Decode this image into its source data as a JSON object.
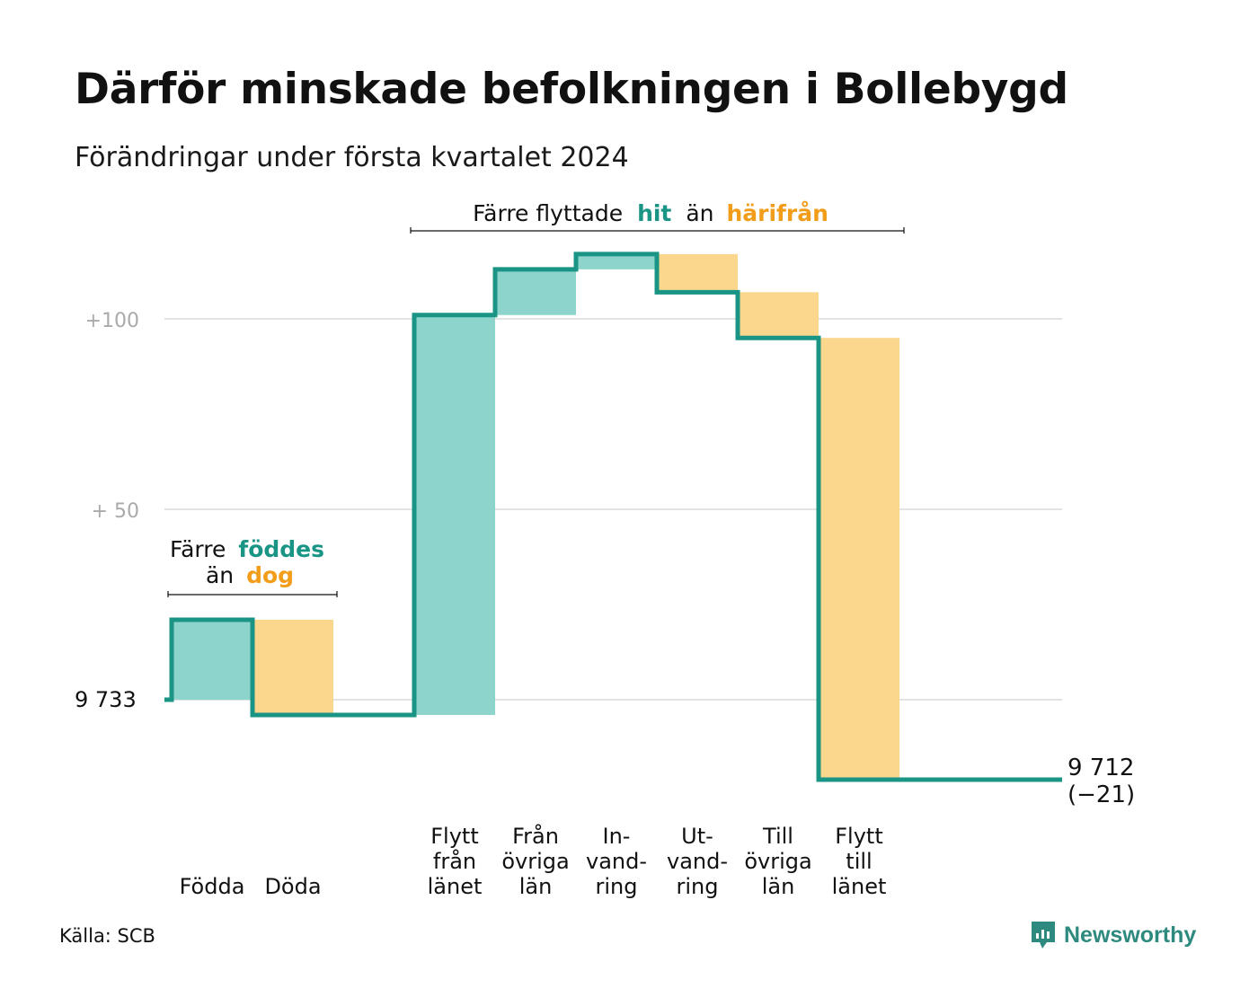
{
  "title": "Därför minskade befolkningen i Bollebygd",
  "subtitle": "Förändringar under första kvartalet 2024",
  "source": "Källa: SCB",
  "brand": {
    "name": "Newsworthy",
    "icon": "newsworthy-logo-icon"
  },
  "colors": {
    "increase": "#8dd5cc",
    "decrease": "#fbd68d",
    "line": "#1a9485",
    "grid": "#e3e3e3",
    "teal_text": "#1a9485",
    "orange_text": "#f29d1a"
  },
  "annotations": {
    "births_deaths": {
      "prefix": "Färre",
      "highlight1": "föddes",
      "middle": "än",
      "highlight2": "dog"
    },
    "migration": {
      "prefix": "Färre flyttade",
      "highlight1": "hit",
      "middle": "än",
      "highlight2": "härifrån"
    }
  },
  "chart_data": {
    "type": "waterfall",
    "title": "Därför minskade befolkningen i Bollebygd",
    "subtitle": "Förändringar under första kvartalet 2024",
    "start": 9733,
    "start_label": "9  733",
    "end": 9712,
    "end_label": "9 712",
    "end_change_label": "(−21)",
    "y_ticks": [
      {
        "value": 9833,
        "label": "+100"
      },
      {
        "value": 9783,
        "label": "+  50"
      },
      {
        "value": 9733,
        "label": ""
      }
    ],
    "ylim": [
      9710,
      9853
    ],
    "grid": true,
    "steps": [
      {
        "label": [
          "",
          "",
          "Födda"
        ],
        "change": 21
      },
      {
        "label": [
          "",
          "",
          "Döda"
        ],
        "change": -25
      },
      {
        "label": [
          "",
          "",
          ""
        ],
        "change": 0
      },
      {
        "label": [
          "Flytt",
          "från",
          "länet"
        ],
        "change": 105
      },
      {
        "label": [
          "Från",
          "övriga",
          "län"
        ],
        "change": 12
      },
      {
        "label": [
          "In-",
          "vand-",
          "ring"
        ],
        "change": 4
      },
      {
        "label": [
          "Ut-",
          "vand-",
          "ring"
        ],
        "change": -10
      },
      {
        "label": [
          "Till",
          "övriga",
          "län"
        ],
        "change": -12
      },
      {
        "label": [
          "Flytt",
          "till",
          "länet"
        ],
        "change": -116
      },
      {
        "label": [
          "",
          "",
          ""
        ],
        "change": 0
      }
    ]
  }
}
